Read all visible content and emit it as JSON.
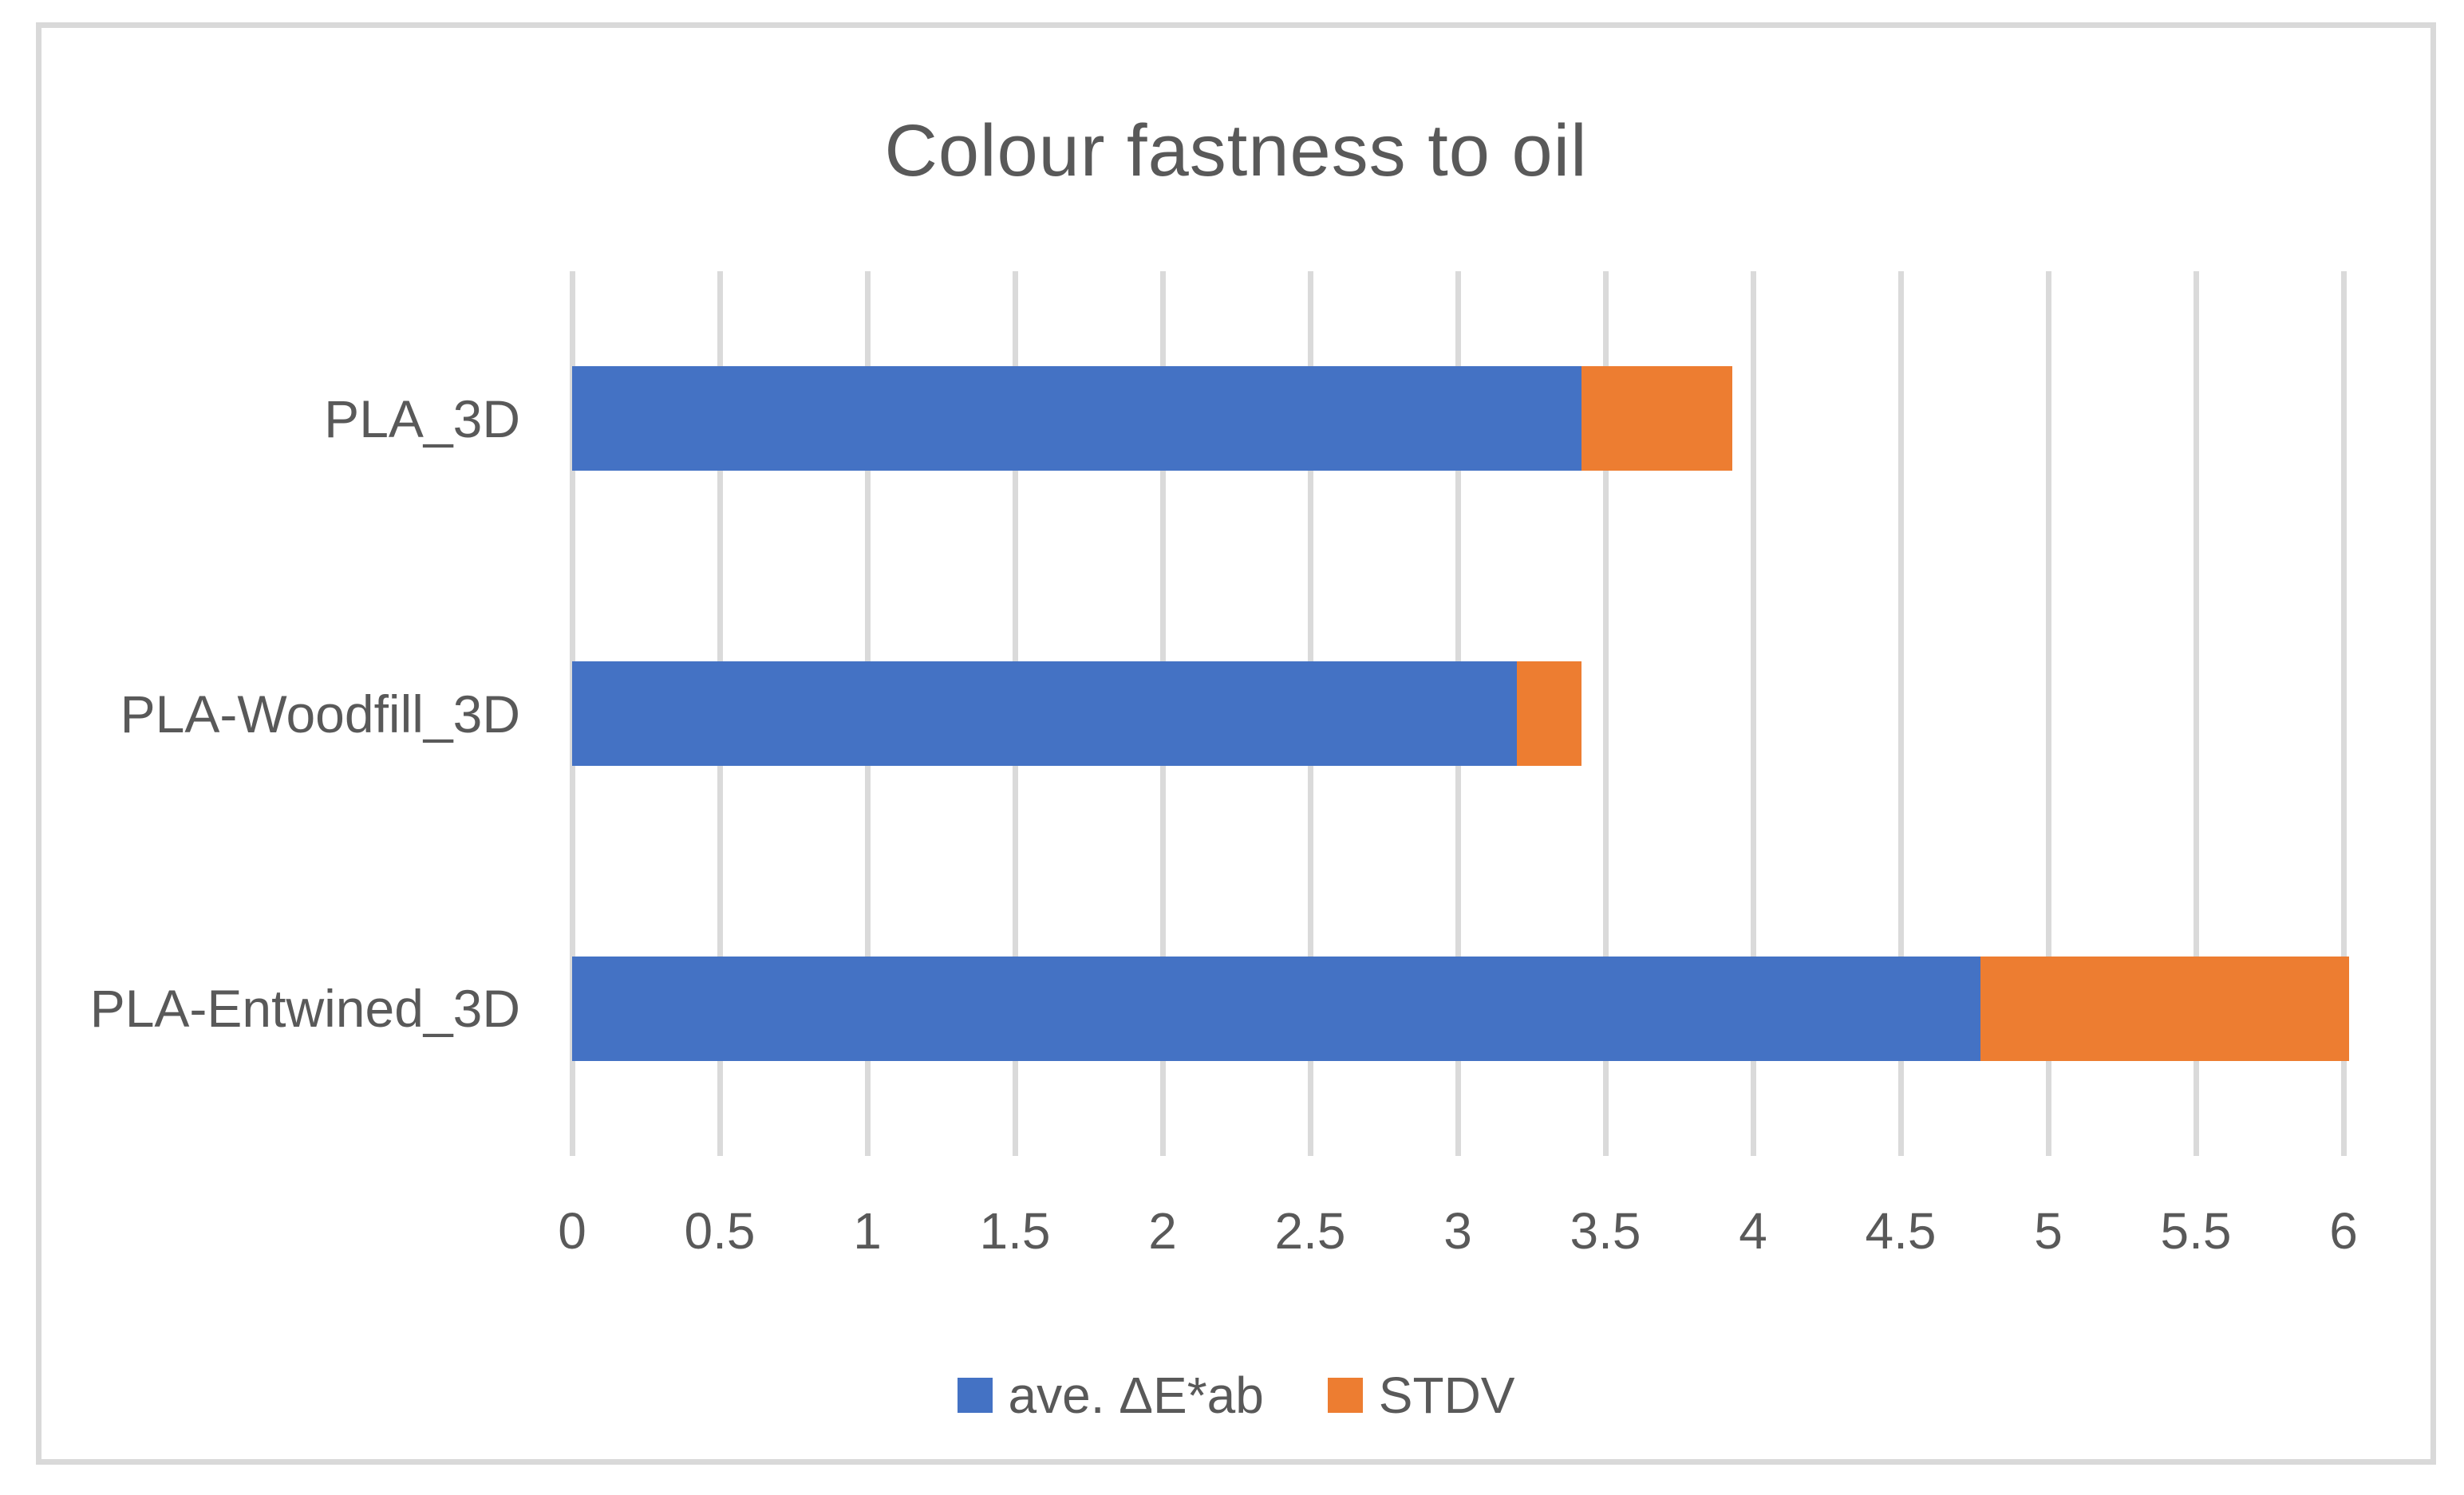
{
  "chart_data": {
    "type": "bar",
    "orientation": "horizontal",
    "stacked": true,
    "title": "Colour fastness to oil",
    "categories": [
      "PLA_3D",
      "PLA-Woodfill_3D",
      "PLA-Entwined_3D"
    ],
    "series": [
      {
        "name": "ave. ΔE*ab",
        "color": "#4472C4",
        "values": [
          3.42,
          3.2,
          4.77
        ]
      },
      {
        "name": "STDV",
        "color": "#ED7D31",
        "values": [
          0.51,
          0.22,
          1.25
        ]
      }
    ],
    "x_axis": {
      "min": 0,
      "max": 6,
      "tick_step": 0.5,
      "tick_labels": [
        "0",
        "0.5",
        "1",
        "1.5",
        "2",
        "2.5",
        "3",
        "3.5",
        "4",
        "4.5",
        "5",
        "5.5",
        "6"
      ]
    },
    "grid": true,
    "legend_position": "bottom",
    "colors": {
      "gridline": "#DADADA",
      "frame_border": "#D9D9D9",
      "text": "#595959",
      "background": "#FFFFFF"
    }
  }
}
